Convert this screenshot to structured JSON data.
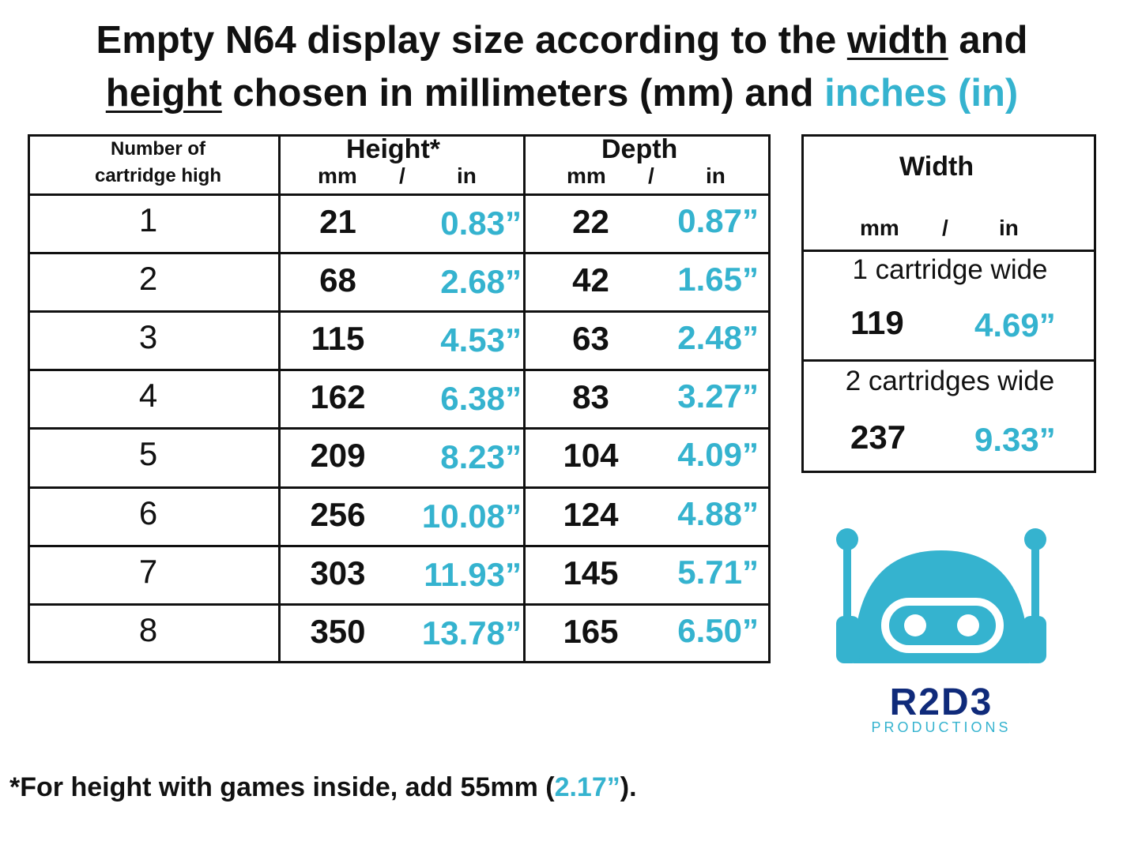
{
  "title": {
    "part1": "Empty N64 display size according to the ",
    "width_word": "width",
    "part2": " and",
    "height_word": "height",
    "part3": " chosen in millimeters (mm) and ",
    "inches": "inches (in)"
  },
  "main_table": {
    "col1_header_line1": "Number of",
    "col1_header_line2": "cartridge high",
    "height_header": "Height*",
    "depth_header": "Depth",
    "unit_mm": "mm",
    "unit_sep": "/",
    "unit_in": "in",
    "rows": [
      {
        "count": "1",
        "height_mm": "21",
        "height_in": "0.83”",
        "depth_mm": "22",
        "depth_in": "0.87”"
      },
      {
        "count": "2",
        "height_mm": "68",
        "height_in": "2.68”",
        "depth_mm": "42",
        "depth_in": "1.65”"
      },
      {
        "count": "3",
        "height_mm": "115",
        "height_in": "4.53”",
        "depth_mm": "63",
        "depth_in": "2.48”"
      },
      {
        "count": "4",
        "height_mm": "162",
        "height_in": "6.38”",
        "depth_mm": "83",
        "depth_in": "3.27”"
      },
      {
        "count": "5",
        "height_mm": "209",
        "height_in": "8.23”",
        "depth_mm": "104",
        "depth_in": "4.09”"
      },
      {
        "count": "6",
        "height_mm": "256",
        "height_in": "10.08”",
        "depth_mm": "124",
        "depth_in": "4.88”"
      },
      {
        "count": "7",
        "height_mm": "303",
        "height_in": "11.93”",
        "depth_mm": "145",
        "depth_in": "5.71”"
      },
      {
        "count": "8",
        "height_mm": "350",
        "height_in": "13.78”",
        "depth_mm": "165",
        "depth_in": "6.50”"
      }
    ]
  },
  "width_table": {
    "header": "Width",
    "unit_mm": "mm",
    "unit_sep": "/",
    "unit_in": "in",
    "rows": [
      {
        "label": "1 cartridge wide",
        "mm": "119",
        "in": "4.69”"
      },
      {
        "label": "2 cartridges wide",
        "mm": "237",
        "in": "9.33”"
      }
    ]
  },
  "footnote": {
    "part1": "*For height with games inside, add 55mm (",
    "inches": "2.17”",
    "part2": ")."
  },
  "logo": {
    "name": "R2D3",
    "subtitle": "PRODUCTIONS",
    "colors": {
      "robot": "#35b3cf",
      "wordmark": "#0f2a7a"
    }
  },
  "colors": {
    "accent": "#35b3cf",
    "text": "#111111"
  }
}
